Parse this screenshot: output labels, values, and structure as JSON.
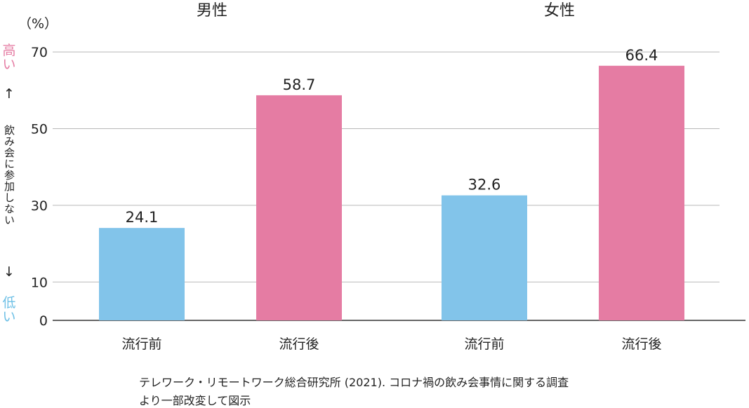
{
  "chart_data": {
    "type": "bar",
    "unit_label": "（%）",
    "yticks": [
      0,
      10,
      30,
      50,
      70
    ],
    "yaxis_side": {
      "high": "高い",
      "low": "低い",
      "arrow_up": "↑",
      "arrow_down": "↓",
      "description": "飲み会に参加しない"
    },
    "groups": [
      {
        "name": "男性",
        "bars": [
          {
            "label": "流行前",
            "value": 24.1,
            "series": "before"
          },
          {
            "label": "流行後",
            "value": 58.7,
            "series": "after"
          }
        ]
      },
      {
        "name": "女性",
        "bars": [
          {
            "label": "流行前",
            "value": 32.6,
            "series": "before"
          },
          {
            "label": "流行後",
            "value": 66.4,
            "series": "after"
          }
        ]
      }
    ],
    "colors": {
      "before": "#82c4ea",
      "after": "#e57ca3",
      "high": "#e57ca3",
      "low": "#6ec0e6",
      "grid": "#b8b8b8",
      "axis": "#333333"
    }
  },
  "source": {
    "line1": "テレワーク・リモートワーク総合研究所 (2021). コロナ禍の飲み会事情に関する調査",
    "line2": "より一部改変して図示"
  }
}
